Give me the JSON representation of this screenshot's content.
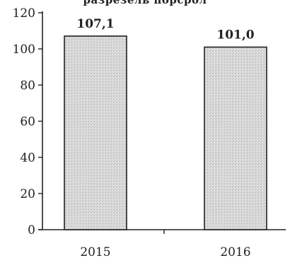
{
  "chart_data": {
    "type": "bar",
    "title": "разрезель порсрол",
    "categories": [
      "2015",
      "2016"
    ],
    "values": [
      107.1,
      101.0
    ],
    "data_labels": [
      "107,1",
      "101,0"
    ],
    "y_ticks": [
      "0",
      "20",
      "40",
      "60",
      "80",
      "100",
      "120"
    ],
    "ylim": [
      0,
      120
    ],
    "grid": false,
    "bar_fill": "#d9d9d9",
    "bar_stroke": "#222222"
  }
}
